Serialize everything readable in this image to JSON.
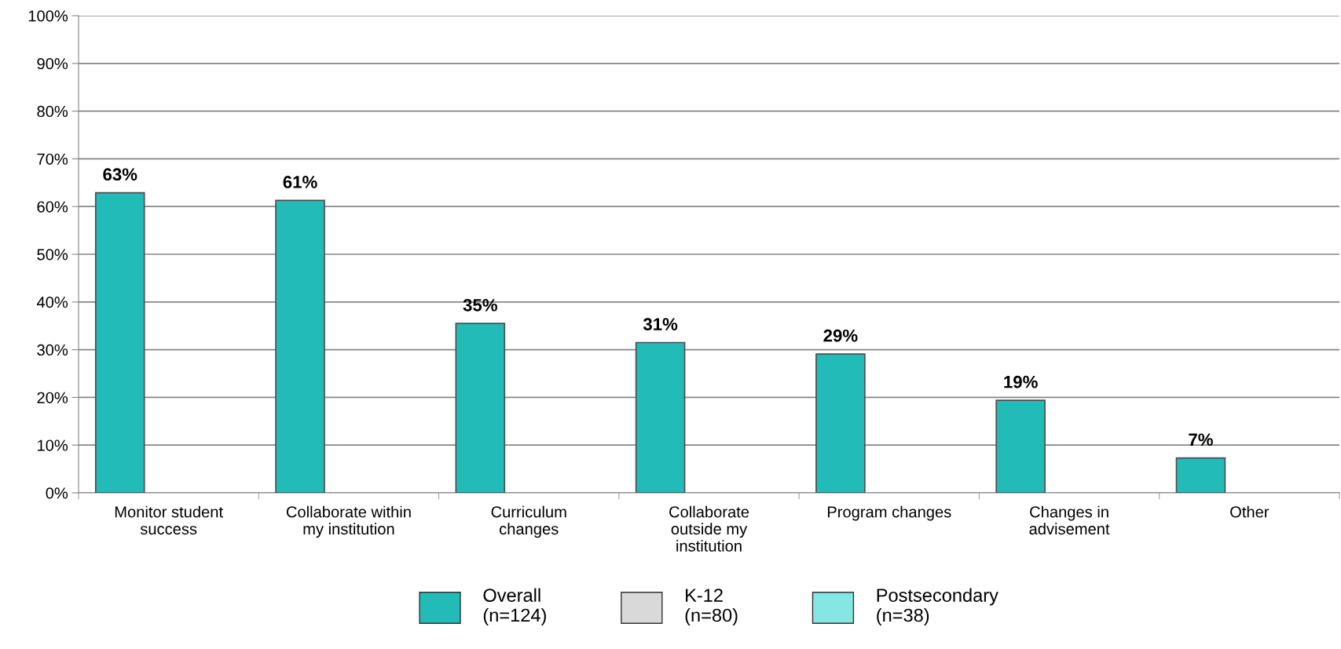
{
  "chart_data": {
    "type": "bar",
    "categories": [
      "Monitor student\nsuccess",
      "Collaborate within\nmy institution",
      "Curriculum\nchanges",
      "Collaborate\noutside my\ninstitution",
      "Program changes",
      "Changes in\nadvisement",
      "Other"
    ],
    "series": [
      {
        "name": "Overall\n(n=124)",
        "color": "#23bbb7",
        "values": [
          62.9,
          61.3,
          35.5,
          31.5,
          29.1,
          19.4,
          7.3
        ],
        "value_labels": [
          "63%",
          "61%",
          "35%",
          "31%",
          "29%",
          "19%",
          "7%"
        ]
      },
      {
        "name": "K-12\n(n=80)",
        "color": "#d9d9d9",
        "values": [
          null,
          null,
          null,
          null,
          null,
          null,
          null
        ]
      },
      {
        "name": "Postsecondary\n(n=38)",
        "color": "#86e6e3",
        "values": [
          null,
          null,
          null,
          null,
          null,
          null,
          null
        ]
      }
    ],
    "ylim": [
      0,
      100
    ],
    "yticks": [
      {
        "value": 0,
        "label": "0%"
      },
      {
        "value": 10,
        "label": "10%"
      },
      {
        "value": 20,
        "label": "20%"
      },
      {
        "value": 30,
        "label": "30%"
      },
      {
        "value": 40,
        "label": "40%"
      },
      {
        "value": 50,
        "label": "50%"
      },
      {
        "value": 60,
        "label": "60%"
      },
      {
        "value": 70,
        "label": "70%"
      },
      {
        "value": 80,
        "label": "80%"
      },
      {
        "value": 90,
        "label": "90%"
      },
      {
        "value": 100,
        "label": "100%"
      }
    ],
    "grid": "y",
    "legend": "bottom"
  }
}
